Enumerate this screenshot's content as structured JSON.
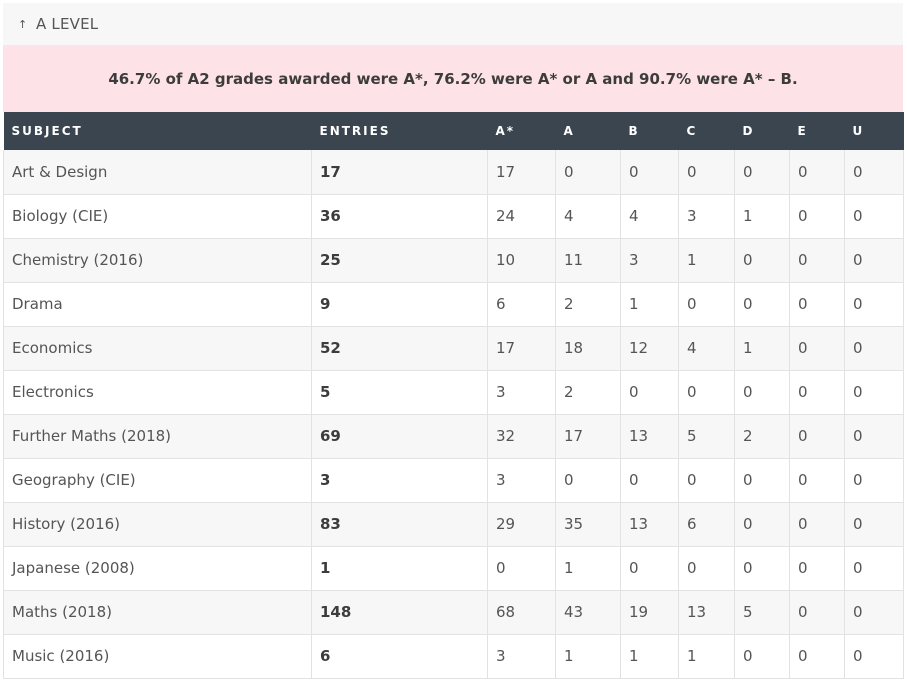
{
  "accordion": {
    "arrow": "↑",
    "title": "A LEVEL"
  },
  "summary": "46.7% of A2 grades awarded were A*, 76.2% were A* or A and 90.7% were A* – B.",
  "table": {
    "headers": [
      "SUBJECT",
      "ENTRIES",
      "A*",
      "A",
      "B",
      "C",
      "D",
      "E",
      "U"
    ],
    "rows": [
      [
        "Art & Design",
        "17",
        "17",
        "0",
        "0",
        "0",
        "0",
        "0",
        "0"
      ],
      [
        "Biology (CIE)",
        "36",
        "24",
        "4",
        "4",
        "3",
        "1",
        "0",
        "0"
      ],
      [
        "Chemistry (2016)",
        "25",
        "10",
        "11",
        "3",
        "1",
        "0",
        "0",
        "0"
      ],
      [
        "Drama",
        "9",
        "6",
        "2",
        "1",
        "0",
        "0",
        "0",
        "0"
      ],
      [
        "Economics",
        "52",
        "17",
        "18",
        "12",
        "4",
        "1",
        "0",
        "0"
      ],
      [
        "Electronics",
        "5",
        "3",
        "2",
        "0",
        "0",
        "0",
        "0",
        "0"
      ],
      [
        "Further Maths (2018)",
        "69",
        "32",
        "17",
        "13",
        "5",
        "2",
        "0",
        "0"
      ],
      [
        "Geography (CIE)",
        "3",
        "3",
        "0",
        "0",
        "0",
        "0",
        "0",
        "0"
      ],
      [
        "History (2016)",
        "83",
        "29",
        "35",
        "13",
        "6",
        "0",
        "0",
        "0"
      ],
      [
        "Japanese (2008)",
        "1",
        "0",
        "1",
        "0",
        "0",
        "0",
        "0",
        "0"
      ],
      [
        "Maths (2018)",
        "148",
        "68",
        "43",
        "19",
        "13",
        "5",
        "0",
        "0"
      ],
      [
        "Music (2016)",
        "6",
        "3",
        "1",
        "1",
        "1",
        "0",
        "0",
        "0"
      ]
    ]
  },
  "colors": {
    "header_bg": "#3a4550",
    "summary_bg": "#fde3e8",
    "accordion_bg": "#f7f7f7"
  }
}
